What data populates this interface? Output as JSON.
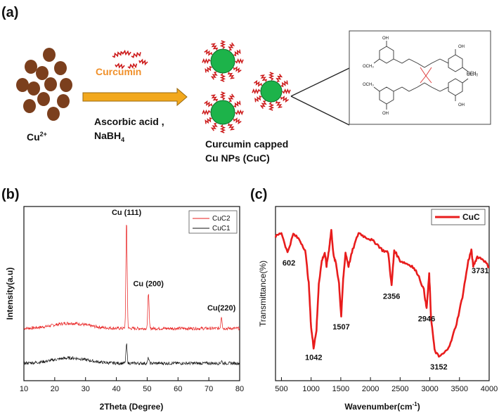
{
  "panel_a": {
    "label": "(a)",
    "cu_ion": {
      "base": "Cu",
      "sup": "2+"
    },
    "curcumin_label": "Curcumin",
    "reagents": {
      "line1": "Ascorbic acid ,",
      "line2_base": "NaBH",
      "line2_sub": "4"
    },
    "product": {
      "line1": "Curcumin capped",
      "line2": "Cu NPs (CuC)"
    },
    "structure_groups": {
      "hydroxyl": "OH",
      "methoxy": "OCH₃"
    },
    "colors": {
      "particle": "#7b3f1d",
      "np": "#1db34a",
      "ligand": "#cc1a1a",
      "arrow": "#f2a81d",
      "curcumin_text": "#f0902a"
    }
  },
  "chart_data": [
    {
      "type": "line",
      "panel": "(b)",
      "xlabel": "2Theta (Degree)",
      "ylabel": "Intensity(a.u)",
      "xlim": [
        10,
        80
      ],
      "xticks": [
        "10",
        "20",
        "30",
        "40",
        "50",
        "60",
        "70",
        "80"
      ],
      "legend": [
        "CuC2",
        "CuC1"
      ],
      "legend_position": "top-right",
      "series": [
        {
          "name": "CuC2",
          "color": "#e81c1c",
          "baseline": 0.3,
          "peaks": [
            {
              "x": 43.3,
              "h": 0.62
            },
            {
              "x": 50.4,
              "h": 0.21
            },
            {
              "x": 74.1,
              "h": 0.07
            }
          ]
        },
        {
          "name": "CuC1",
          "color": "#111111",
          "baseline": 0.1,
          "peaks": [
            {
              "x": 43.3,
              "h": 0.11
            },
            {
              "x": 50.4,
              "h": 0.03
            },
            {
              "x": 74.1,
              "h": 0.015
            }
          ]
        }
      ],
      "annotations": [
        {
          "text": "Cu (111)",
          "x": 43.3
        },
        {
          "text": "Cu (200)",
          "x": 50.4
        },
        {
          "text": "Cu(220)",
          "x": 74.1
        }
      ]
    },
    {
      "type": "line",
      "panel": "(c)",
      "xlabel": "Wavenumber(cm",
      "xlabel_sup": "-1",
      "xlabel_tail": ")",
      "ylabel": "Transmittance(%)",
      "xlim": [
        400,
        4000
      ],
      "xticks": [
        "500",
        "1000",
        "1500",
        "2000",
        "2500",
        "3000",
        "3500",
        "4000"
      ],
      "legend": [
        "CuC"
      ],
      "legend_position": "top-right",
      "series": [
        {
          "name": "CuC",
          "color": "#e81c1c",
          "points": [
            [
              400,
              0.9
            ],
            [
              500,
              0.93
            ],
            [
              602,
              0.78
            ],
            [
              700,
              0.92
            ],
            [
              800,
              0.88
            ],
            [
              900,
              0.8
            ],
            [
              960,
              0.55
            ],
            [
              1000,
              0.22
            ],
            [
              1042,
              0.07
            ],
            [
              1090,
              0.2
            ],
            [
              1130,
              0.55
            ],
            [
              1180,
              0.72
            ],
            [
              1230,
              0.78
            ],
            [
              1260,
              0.68
            ],
            [
              1300,
              0.8
            ],
            [
              1340,
              0.95
            ],
            [
              1380,
              0.75
            ],
            [
              1420,
              0.7
            ],
            [
              1470,
              0.55
            ],
            [
              1507,
              0.3
            ],
            [
              1540,
              0.58
            ],
            [
              1580,
              0.78
            ],
            [
              1630,
              0.68
            ],
            [
              1700,
              0.8
            ],
            [
              1800,
              0.93
            ],
            [
              1900,
              0.9
            ],
            [
              2000,
              0.88
            ],
            [
              2100,
              0.85
            ],
            [
              2200,
              0.8
            ],
            [
              2300,
              0.78
            ],
            [
              2356,
              0.53
            ],
            [
              2400,
              0.8
            ],
            [
              2500,
              0.72
            ],
            [
              2600,
              0.7
            ],
            [
              2700,
              0.68
            ],
            [
              2800,
              0.62
            ],
            [
              2900,
              0.5
            ],
            [
              2946,
              0.36
            ],
            [
              2990,
              0.62
            ],
            [
              3020,
              0.3
            ],
            [
              3080,
              0.05
            ],
            [
              3152,
              0.0
            ],
            [
              3250,
              0.03
            ],
            [
              3350,
              0.1
            ],
            [
              3450,
              0.25
            ],
            [
              3550,
              0.45
            ],
            [
              3650,
              0.72
            ],
            [
              3700,
              0.8
            ],
            [
              3731,
              0.68
            ],
            [
              3800,
              0.75
            ],
            [
              3900,
              0.73
            ],
            [
              4000,
              0.67
            ]
          ]
        }
      ],
      "annotations": [
        {
          "text": "602",
          "x": 602
        },
        {
          "text": "1042",
          "x": 1042
        },
        {
          "text": "1507",
          "x": 1507
        },
        {
          "text": "2356",
          "x": 2356
        },
        {
          "text": "2946",
          "x": 2946
        },
        {
          "text": "3152",
          "x": 3152
        },
        {
          "text": "3731",
          "x": 3731
        }
      ]
    }
  ]
}
